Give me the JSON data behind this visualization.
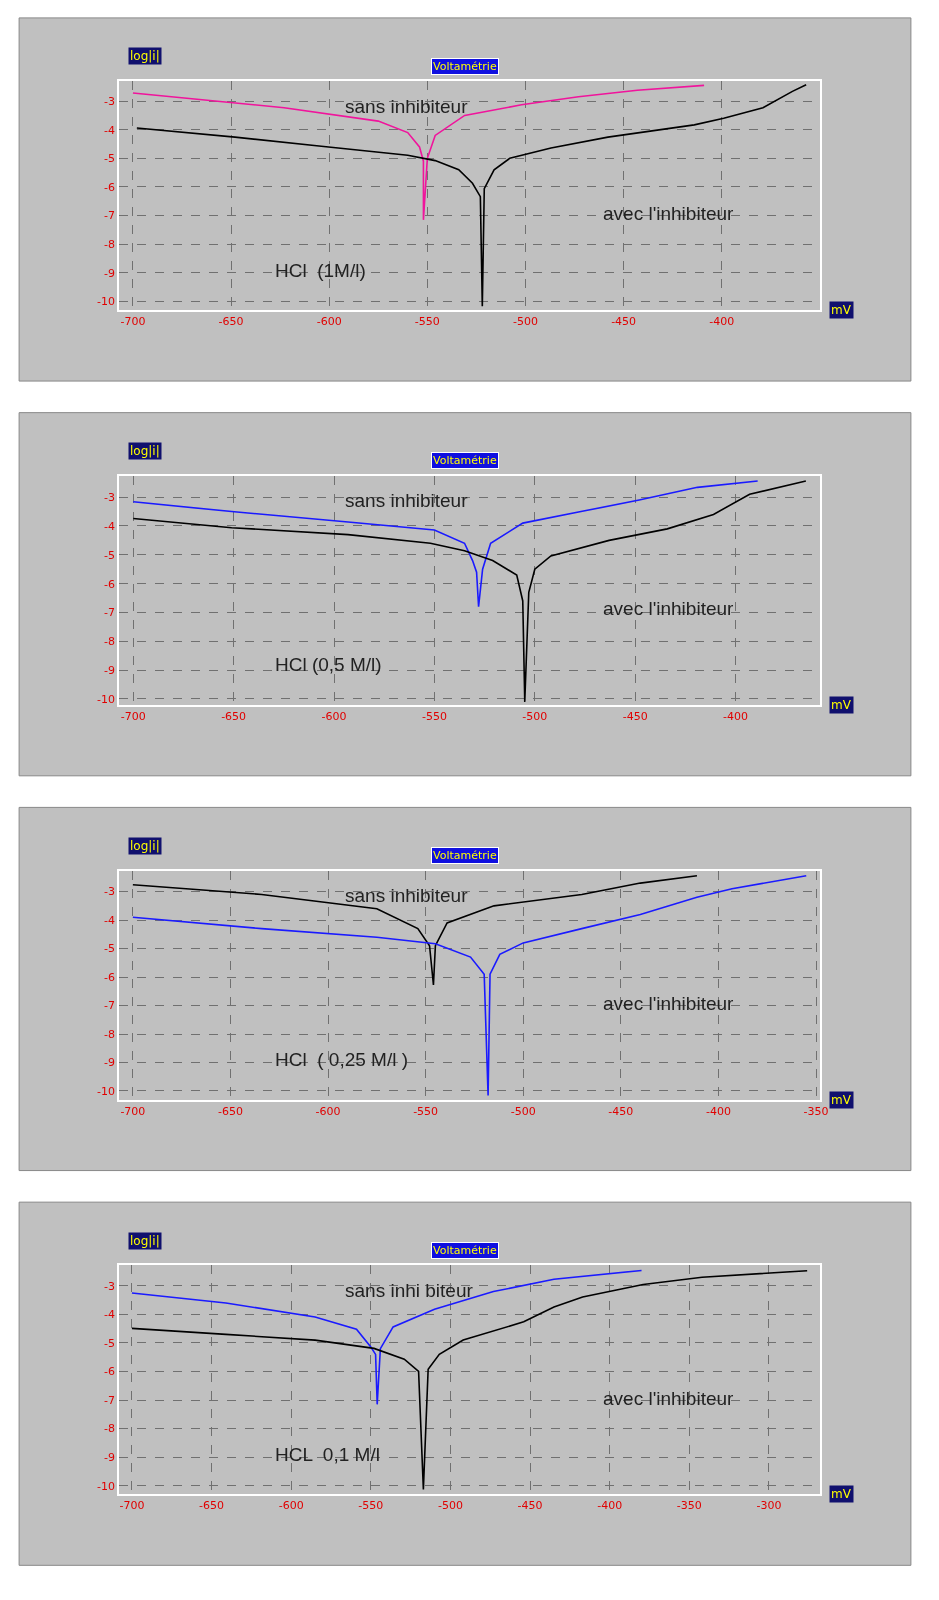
{
  "chart_data": [
    {
      "type": "line",
      "title": "Voltamétrie",
      "xlabel": "mV",
      "ylabel": "log|i|",
      "xlim": [
        -707,
        -350
      ],
      "ylim": [
        -10.3,
        -2.3
      ],
      "xticks": [
        -700,
        -650,
        -600,
        -550,
        -500,
        -450,
        -400
      ],
      "yticks": [
        -3,
        -4,
        -5,
        -6,
        -7,
        -8,
        -9,
        -10
      ],
      "grid": true,
      "line_style": "solid",
      "marker": "none",
      "annotations": [
        "sans inhibiteur",
        "avec l'inhibiteur",
        "HCl  (1M/l)"
      ],
      "series": [
        {
          "color": "#f0149c",
          "x": [
            -700,
            -623,
            -575,
            -560,
            -554,
            -552,
            -552,
            -550,
            -546,
            -531,
            -502,
            -473,
            -443,
            -409
          ],
          "values": [
            -2.72,
            -3.23,
            -3.7,
            -4.1,
            -4.6,
            -5.1,
            -7.15,
            -5.0,
            -4.2,
            -3.5,
            -3.13,
            -2.85,
            -2.62,
            -2.45
          ]
        },
        {
          "color": "#000000",
          "x": [
            -698,
            -648,
            -604,
            -560,
            -546,
            -534,
            -527,
            -523,
            -522,
            -521,
            -516,
            -508,
            -487,
            -458,
            -414,
            -399,
            -379,
            -364,
            -357
          ],
          "values": [
            -3.94,
            -4.26,
            -4.58,
            -4.89,
            -5.08,
            -5.4,
            -5.87,
            -6.34,
            -10.17,
            -6.06,
            -5.4,
            -5.0,
            -4.64,
            -4.26,
            -3.83,
            -3.6,
            -3.23,
            -2.66,
            -2.43
          ]
        }
      ]
    },
    {
      "type": "line",
      "title": "Voltamétrie",
      "xlabel": "mV",
      "ylabel": "log|i|",
      "xlim": [
        -707,
        -358
      ],
      "ylim": [
        -10.2,
        -2.26
      ],
      "xticks": [
        -700,
        -650,
        -600,
        -550,
        -500,
        -450,
        -400
      ],
      "yticks": [
        -3,
        -4,
        -5,
        -6,
        -7,
        -8,
        -9,
        -10
      ],
      "grid": true,
      "line_style": "solid",
      "marker": "none",
      "annotations": [
        "sans inhibiteur",
        "avec l'inhibiteur",
        "HCl (0,5 M/l)"
      ],
      "series": [
        {
          "color": "#1a1aff",
          "x": [
            -700,
            -651,
            -593,
            -550,
            -535,
            -531,
            -529,
            -528,
            -526,
            -522,
            -506,
            -477,
            -448,
            -419,
            -389
          ],
          "values": [
            -3.16,
            -3.5,
            -3.86,
            -4.14,
            -4.6,
            -5.2,
            -5.6,
            -6.8,
            -5.5,
            -4.6,
            -3.9,
            -3.5,
            -3.1,
            -2.66,
            -2.44
          ]
        },
        {
          "color": "#000000",
          "x": [
            -700,
            -651,
            -593,
            -552,
            -535,
            -521,
            -509,
            -506,
            -505,
            -503,
            -500,
            -492,
            -463,
            -434,
            -411,
            -393,
            -365
          ],
          "values": [
            -3.74,
            -4.06,
            -4.3,
            -4.6,
            -4.86,
            -5.2,
            -5.7,
            -6.6,
            -10.1,
            -6.3,
            -5.5,
            -5.04,
            -4.5,
            -4.1,
            -3.6,
            -2.9,
            -2.44
          ]
        }
      ]
    },
    {
      "type": "line",
      "title": "Voltamétrie",
      "xlabel": "mV",
      "ylabel": "log|i|",
      "xlim": [
        -707,
        -348
      ],
      "ylim": [
        -10.3,
        -2.26
      ],
      "xticks": [
        -700,
        -650,
        -600,
        -550,
        -500,
        -450,
        -400,
        -350
      ],
      "yticks": [
        -3,
        -4,
        -5,
        -6,
        -7,
        -8,
        -9,
        -10
      ],
      "grid": true,
      "line_style": "solid",
      "marker": "none",
      "annotations": [
        "sans inhibiteur",
        "avec l'inhibiteur",
        "HCl  ( 0,25 M/l )"
      ],
      "series": [
        {
          "color": "#000000",
          "x": [
            -700,
            -634,
            -575,
            -554,
            -548,
            -546,
            -545,
            -539,
            -515,
            -470,
            -440,
            -411
          ],
          "values": [
            -2.76,
            -3.1,
            -3.6,
            -4.3,
            -4.9,
            -6.28,
            -4.9,
            -4.1,
            -3.5,
            -3.1,
            -2.7,
            -2.44
          ]
        },
        {
          "color": "#1a1aff",
          "x": [
            -700,
            -634,
            -575,
            -545,
            -527,
            -520,
            -518,
            -517,
            -512,
            -500,
            -470,
            -440,
            -411,
            -393,
            -355
          ],
          "values": [
            -3.9,
            -4.3,
            -4.6,
            -4.83,
            -5.3,
            -5.9,
            -10.16,
            -5.9,
            -5.2,
            -4.8,
            -4.3,
            -3.8,
            -3.2,
            -2.9,
            -2.44
          ]
        }
      ]
    },
    {
      "type": "line",
      "title": "Voltamétrie",
      "xlabel": "mV",
      "ylabel": "log|i|",
      "xlim": [
        -708,
        -268
      ],
      "ylim": [
        -10.3,
        -2.28
      ],
      "xticks": [
        -700,
        -650,
        -600,
        -550,
        -500,
        -450,
        -400,
        -350,
        -300
      ],
      "yticks": [
        -3,
        -4,
        -5,
        -6,
        -7,
        -8,
        -9,
        -10
      ],
      "grid": true,
      "line_style": "solid",
      "marker": "none",
      "annotations": [
        "sans inhi biteur",
        "avec l'inhibiteur",
        "HCL  0,1 M/l"
      ],
      "series": [
        {
          "color": "#1a1aff",
          "x": [
            -700,
            -641,
            -585,
            -559,
            -550,
            -547,
            -546,
            -544,
            -536,
            -510,
            -473,
            -435,
            -380
          ],
          "values": [
            -3.25,
            -3.6,
            -4.09,
            -4.52,
            -5.14,
            -5.4,
            -7.15,
            -5.2,
            -4.44,
            -3.82,
            -3.2,
            -2.77,
            -2.46
          ]
        },
        {
          "color": "#000000",
          "x": [
            -700,
            -641,
            -585,
            -548,
            -529,
            -520,
            -517,
            -514,
            -507,
            -492,
            -454,
            -435,
            -417,
            -379,
            -342,
            -276
          ],
          "values": [
            -4.49,
            -4.7,
            -4.9,
            -5.19,
            -5.57,
            -6.0,
            -10.13,
            -5.92,
            -5.4,
            -4.9,
            -4.26,
            -3.74,
            -3.39,
            -2.95,
            -2.7,
            -2.47
          ]
        }
      ]
    }
  ]
}
